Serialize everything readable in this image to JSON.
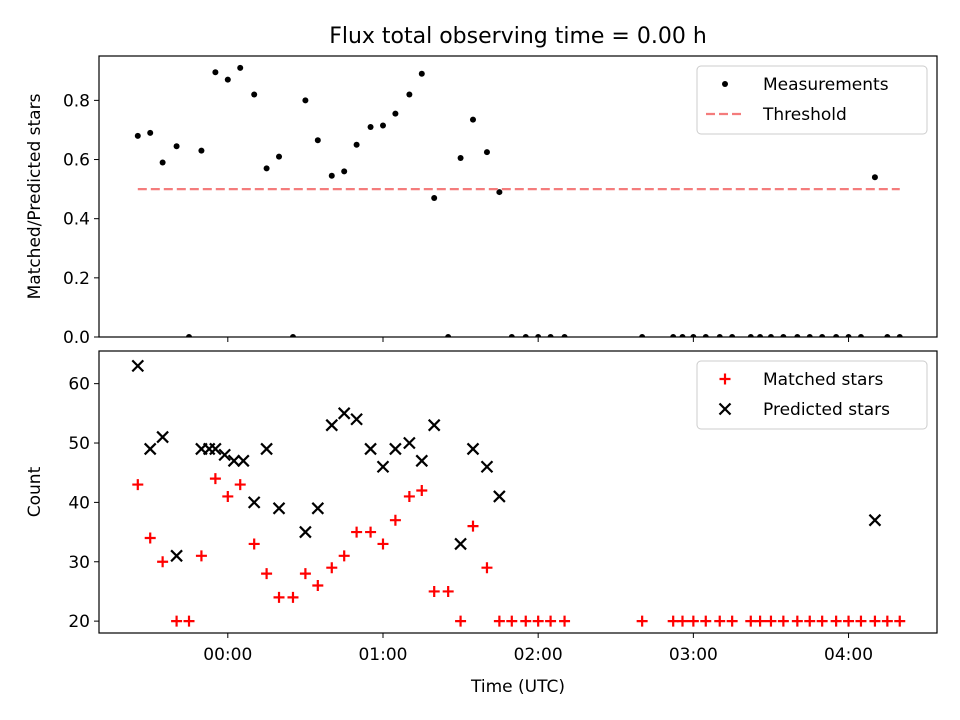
{
  "title": "Flux total observing time = 0.00 h",
  "chart_data": [
    {
      "type": "scatter",
      "ylabel": "Matched/Predicted stars",
      "ylim": [
        0,
        0.95
      ],
      "xlim": [
        -0.83,
        4.57
      ],
      "yticks": [
        0.0,
        0.2,
        0.4,
        0.6,
        0.8
      ],
      "ytick_labels": [
        "0.0",
        "0.2",
        "0.4",
        "0.6",
        "0.8"
      ],
      "legend_position": "top-right",
      "series": [
        {
          "name": "Measurements",
          "marker": "dot",
          "color": "#000000",
          "x": [
            -0.58,
            -0.5,
            -0.42,
            -0.33,
            -0.25,
            -0.17,
            -0.08,
            0,
            0.08,
            0.17,
            0.25,
            0.33,
            0.42,
            0.5,
            0.58,
            0.67,
            0.75,
            0.83,
            0.92,
            1,
            1.08,
            1.17,
            1.25,
            1.33,
            1.42,
            1.5,
            1.58,
            1.67,
            1.75,
            1.83,
            1.92,
            2,
            2.08,
            2.17,
            2.67,
            2.87,
            2.93,
            3,
            3.08,
            3.17,
            3.25,
            3.37,
            3.43,
            3.5,
            3.58,
            3.67,
            3.75,
            3.83,
            3.92,
            4,
            4.08,
            4.17,
            4.25,
            4.33
          ],
          "y": [
            0.68,
            0.69,
            0.59,
            0.645,
            0,
            0.63,
            0.895,
            0.87,
            0.91,
            0.82,
            0.57,
            0.61,
            0,
            0.8,
            0.665,
            0.545,
            0.56,
            0.65,
            0.71,
            0.715,
            0.755,
            0.82,
            0.89,
            0.47,
            0,
            0.605,
            0.735,
            0.625,
            0.49,
            0,
            0,
            0,
            0,
            0,
            0,
            0,
            0,
            0,
            0,
            0,
            0,
            0,
            0,
            0,
            0,
            0,
            0,
            0,
            0,
            0,
            0,
            0.54,
            0,
            0
          ]
        },
        {
          "name": "Threshold",
          "style": "dashed",
          "color": "#f47c7c",
          "x": [
            -0.58,
            4.33
          ],
          "y": [
            0.5,
            0.5
          ]
        }
      ]
    },
    {
      "type": "scatter",
      "xlabel": "Time (UTC)",
      "ylabel": "Count",
      "ylim": [
        18,
        65.5
      ],
      "xlim": [
        -0.83,
        4.57
      ],
      "yticks": [
        20,
        30,
        40,
        50,
        60
      ],
      "ytick_labels": [
        "20",
        "30",
        "40",
        "50",
        "60"
      ],
      "xticks": [
        0,
        1,
        2,
        3,
        4
      ],
      "xtick_labels": [
        "00:00",
        "01:00",
        "02:00",
        "03:00",
        "04:00"
      ],
      "legend_position": "top-right",
      "series": [
        {
          "name": "Matched stars",
          "marker": "plus",
          "color": "#ff0000",
          "x": [
            -0.58,
            -0.5,
            -0.42,
            -0.33,
            -0.25,
            -0.17,
            -0.08,
            0,
            0.08,
            0.17,
            0.25,
            0.33,
            0.42,
            0.5,
            0.58,
            0.67,
            0.75,
            0.83,
            0.92,
            1,
            1.08,
            1.17,
            1.25,
            1.33,
            1.42,
            1.5,
            1.58,
            1.67,
            1.75,
            1.83,
            1.92,
            2,
            2.08,
            2.17,
            2.67,
            2.87,
            2.93,
            3,
            3.08,
            3.17,
            3.25,
            3.37,
            3.43,
            3.5,
            3.58,
            3.67,
            3.75,
            3.83,
            3.92,
            4,
            4.08,
            4.17,
            4.25,
            4.33
          ],
          "y": [
            43,
            34,
            30,
            20,
            20,
            31,
            44,
            41,
            43,
            33,
            28,
            24,
            24,
            28,
            26,
            29,
            31,
            35,
            35,
            33,
            37,
            41,
            42,
            25,
            25,
            20,
            36,
            29,
            20,
            20,
            20,
            20,
            20,
            20,
            20,
            20,
            20,
            20,
            20,
            20,
            20,
            20,
            20,
            20,
            20,
            20,
            20,
            20,
            20,
            20,
            20,
            20,
            20,
            20
          ]
        },
        {
          "name": "Predicted stars",
          "marker": "x",
          "color": "#000000",
          "x": [
            -0.58,
            -0.5,
            -0.42,
            -0.33,
            -0.17,
            -0.12,
            -0.08,
            -0.02,
            0.04,
            0.1,
            0.17,
            0.25,
            0.33,
            0.5,
            0.58,
            0.67,
            0.75,
            0.83,
            0.92,
            1,
            1.08,
            1.17,
            1.25,
            1.33,
            1.5,
            1.58,
            1.67,
            1.75,
            4.17
          ],
          "y": [
            63,
            49,
            51,
            31,
            49,
            49,
            49,
            48,
            47,
            47,
            40,
            49,
            39,
            35,
            39,
            53,
            55,
            54,
            49,
            46,
            49,
            50,
            47,
            53,
            33,
            49,
            46,
            41,
            37
          ]
        }
      ]
    }
  ]
}
